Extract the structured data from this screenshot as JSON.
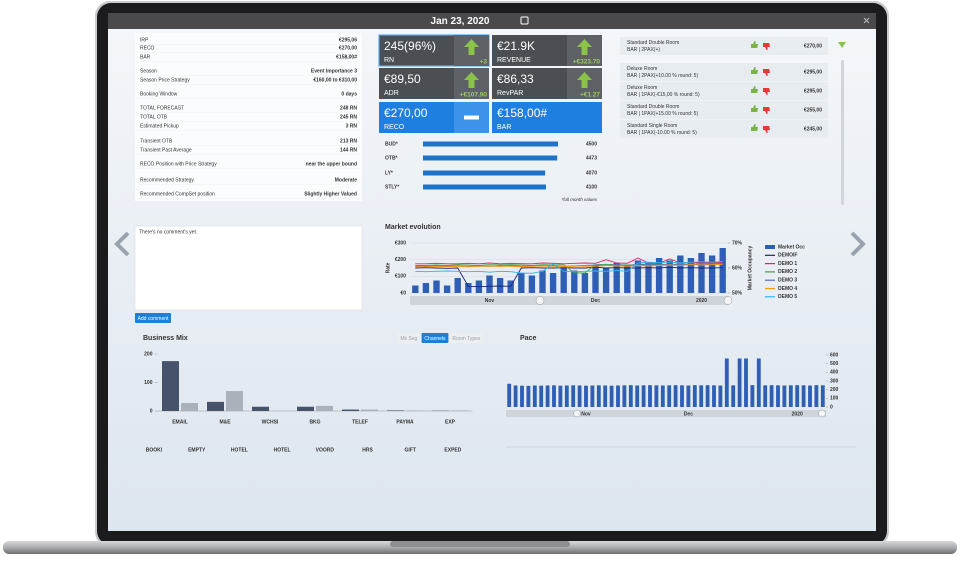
{
  "header": {
    "date": "Jan 23, 2020"
  },
  "info": [
    [
      "IRP",
      "€295,06"
    ],
    [
      "RECO",
      "€270,00"
    ],
    [
      "BAR",
      "€158,00#"
    ],
    [
      "Season",
      "Event Importance 3"
    ],
    [
      "Season Price Strategy",
      "€160,00 to €310,00"
    ],
    [
      "Booking Window",
      "0 days"
    ],
    [
      "TOTAL FORECAST",
      "248 RN"
    ],
    [
      "TOTAL OTB",
      "245 RN"
    ],
    [
      "Estimated Pickup",
      "3 RN"
    ],
    [
      "Transient OTB",
      "213 RN"
    ],
    [
      "Transient Past Average",
      "144 RN"
    ],
    [
      "RECO Position with Price Strategy",
      "near the upper bound"
    ],
    [
      "Recommended Strategy",
      "Moderate"
    ],
    [
      "Recommended CompSet position",
      "Slightly Higher Valued"
    ]
  ],
  "kpis": [
    {
      "value": "245(96%)",
      "label": "RN",
      "delta": "+3",
      "icon": "up",
      "color": "#4b4e53"
    },
    {
      "value": "€21.9K",
      "label": "REVENUE",
      "delta": "+€323.70",
      "icon": "up",
      "color": "#4b4e53"
    },
    {
      "value": "€89,50",
      "label": "ADR",
      "delta": "+€107.90",
      "icon": "up",
      "color": "#4b4e53"
    },
    {
      "value": "€86,33",
      "label": "RevPAR",
      "delta": "+€1.27",
      "icon": "up",
      "color": "#4b4e53"
    },
    {
      "value": "€270,00",
      "label": "RECO",
      "icon": "flat",
      "color": "#1f7fe0"
    },
    {
      "value": "€158,00#",
      "label": "BAR",
      "color": "#1f7fe0"
    }
  ],
  "budget": {
    "labels": [
      "BUD*",
      "OTB*",
      "LY*",
      "STLY*"
    ],
    "values": [
      4500,
      4473,
      4070,
      4100
    ],
    "note": "*full month values",
    "color": "#1e73c8"
  },
  "rooms": [
    {
      "name": "Standard Double Room",
      "rate": "BAR | 2PAX(+)",
      "price": "€270,00"
    },
    {
      "name": "Deluxe Room",
      "rate": "BAR | 2PAX(+10.00 % round: 5)",
      "price": "€295,00"
    },
    {
      "name": "Deluxe Room",
      "rate": "BAR | 1PAX(-€15,00 % round: 5)",
      "price": "€295,00"
    },
    {
      "name": "Standard Double Room",
      "rate": "BAR | 1PAX(+15.00 % round: 5)",
      "price": "€255,00"
    },
    {
      "name": "Standard Single Room",
      "rate": "BAR | 1PAX(-10.00 % round: 5)",
      "price": "€245,00"
    }
  ],
  "comment": {
    "text": "There's no comment's yet.",
    "button": "Add comment"
  },
  "market_evolution": {
    "type": "bar_line",
    "title": "Market evolution",
    "y_label": "Rate",
    "y2_label": "Market Occupancy",
    "categories": [
      null,
      null,
      null,
      null,
      null,
      null,
      null,
      "Nov",
      null,
      null,
      null,
      null,
      null,
      null,
      null,
      null,
      null,
      "Dec",
      null,
      null,
      null,
      null,
      null,
      null,
      null,
      null,
      null,
      "2020",
      null,
      null
    ],
    "ylim": [
      0,
      300
    ],
    "yticks": [
      {
        "value": 0,
        "label": "€0"
      },
      {
        "value": 100,
        "label": "€100"
      },
      {
        "value": 200,
        "label": "€200"
      },
      {
        "value": 300,
        "label": "€300"
      }
    ],
    "y2lim": [
      50,
      70
    ],
    "y2ticks": [
      {
        "value": 50,
        "label": "50%"
      },
      {
        "value": 60,
        "label": "60%"
      },
      {
        "value": 70,
        "label": "70%"
      }
    ],
    "series": [
      {
        "name": "Market Occ",
        "color": "#2f5fb4",
        "axis": "y2",
        "values": [
          53,
          54,
          55,
          53,
          56,
          54,
          55,
          57,
          56,
          55,
          58,
          57,
          59,
          58,
          60,
          59,
          58,
          61,
          60,
          62,
          61,
          63,
          62,
          64,
          63,
          65,
          64,
          66,
          65,
          68
        ]
      },
      {
        "name": "DEMOIF",
        "color": "#1a237e",
        "values": [
          150,
          152,
          150,
          148,
          150,
          40,
          38,
          40,
          42,
          40,
          150,
          152,
          150,
          150,
          152,
          150,
          150,
          155,
          150,
          152,
          150,
          150,
          152,
          150,
          155,
          150,
          152,
          150,
          150,
          152
        ]
      },
      {
        "name": "DEMO 1",
        "color": "#e91e63",
        "values": [
          175,
          175,
          178,
          175,
          175,
          178,
          175,
          180,
          175,
          178,
          176,
          175,
          180,
          178,
          175,
          178,
          180,
          178,
          200,
          180,
          178,
          210,
          180,
          178,
          205,
          180,
          185,
          180,
          182,
          185
        ]
      },
      {
        "name": "DEMO 2",
        "color": "#43a047",
        "values": [
          165,
          165,
          168,
          165,
          170,
          168,
          165,
          170,
          168,
          170,
          168,
          165,
          170,
          168,
          170,
          120,
          120,
          170,
          172,
          170,
          168,
          170,
          175,
          172,
          170,
          175,
          172,
          178,
          175,
          180
        ]
      },
      {
        "name": "DEMO 3",
        "color": "#5c6bc0",
        "values": [
          160,
          160,
          162,
          160,
          162,
          160,
          162,
          160,
          162,
          165,
          160,
          162,
          165,
          162,
          160,
          162,
          165,
          168,
          165,
          170,
          165,
          168,
          170,
          168,
          172,
          170,
          175,
          170,
          172,
          175
        ]
      },
      {
        "name": "DEMO 4",
        "color": "#ff9800",
        "values": [
          158,
          158,
          160,
          158,
          160,
          158,
          160,
          162,
          160,
          160,
          158,
          160,
          162,
          160,
          158,
          160,
          162,
          160,
          165,
          162,
          160,
          165,
          162,
          165,
          168,
          165,
          170,
          168,
          170,
          172
        ]
      },
      {
        "name": "DEMO 5",
        "color": "#29b6f6",
        "values": [
          130,
          128,
          130,
          132,
          130,
          128,
          130,
          125,
          130,
          128,
          120,
          118,
          130,
          175,
          130,
          128,
          130,
          132,
          130,
          135,
          130,
          180,
          185,
          182,
          185,
          180,
          185,
          188,
          185,
          190
        ]
      }
    ]
  },
  "business_mix": {
    "type": "bar",
    "title": "Business Mix",
    "tabs": [
      "Mk Seg",
      "Channels",
      "Room Types"
    ],
    "active_tab": 1,
    "categories": [
      "EMAIL",
      "M&E",
      "WCHSI",
      "BKG",
      "TELEF",
      "PAYMA",
      "EXP"
    ],
    "extra_labels": [
      "BOOKI",
      "EMPTY",
      "HOTEL",
      "HOTEL",
      "VOORD",
      "HRS",
      "GIFT",
      "EXPED"
    ],
    "ylim": [
      0,
      200
    ],
    "yticks": [
      0,
      100,
      200
    ],
    "series": [
      {
        "color": "#46536b",
        "values": [
          175,
          32,
          15,
          15,
          5,
          2,
          1
        ]
      },
      {
        "color": "#aab1ba",
        "values": [
          28,
          70,
          0,
          18,
          5,
          2,
          2
        ]
      }
    ]
  },
  "pace": {
    "type": "bar",
    "title": "Pace",
    "color": "#2f5fb4",
    "categories": [
      null,
      null,
      null,
      null,
      null,
      null,
      null,
      null,
      null,
      null,
      null,
      null,
      "Nov",
      null,
      null,
      null,
      null,
      null,
      null,
      null,
      null,
      null,
      null,
      null,
      null,
      null,
      null,
      null,
      "Dec",
      null,
      null,
      null,
      null,
      null,
      null,
      null,
      null,
      null,
      null,
      null,
      null,
      null,
      null,
      null,
      null,
      "2020",
      null,
      null,
      null,
      null
    ],
    "ylim": [
      0,
      600
    ],
    "yticks": [
      0,
      100,
      200,
      300,
      400,
      500,
      600
    ],
    "values": [
      268,
      248,
      246,
      244,
      248,
      246,
      248,
      250,
      246,
      248,
      250,
      248,
      246,
      248,
      250,
      248,
      246,
      248,
      250,
      252,
      248,
      250,
      252,
      250,
      248,
      250,
      252,
      250,
      248,
      252,
      250,
      252,
      250,
      248,
      560,
      250,
      560,
      560,
      252,
      560,
      250,
      252,
      250,
      248,
      250,
      252,
      250,
      248,
      252,
      250
    ]
  }
}
